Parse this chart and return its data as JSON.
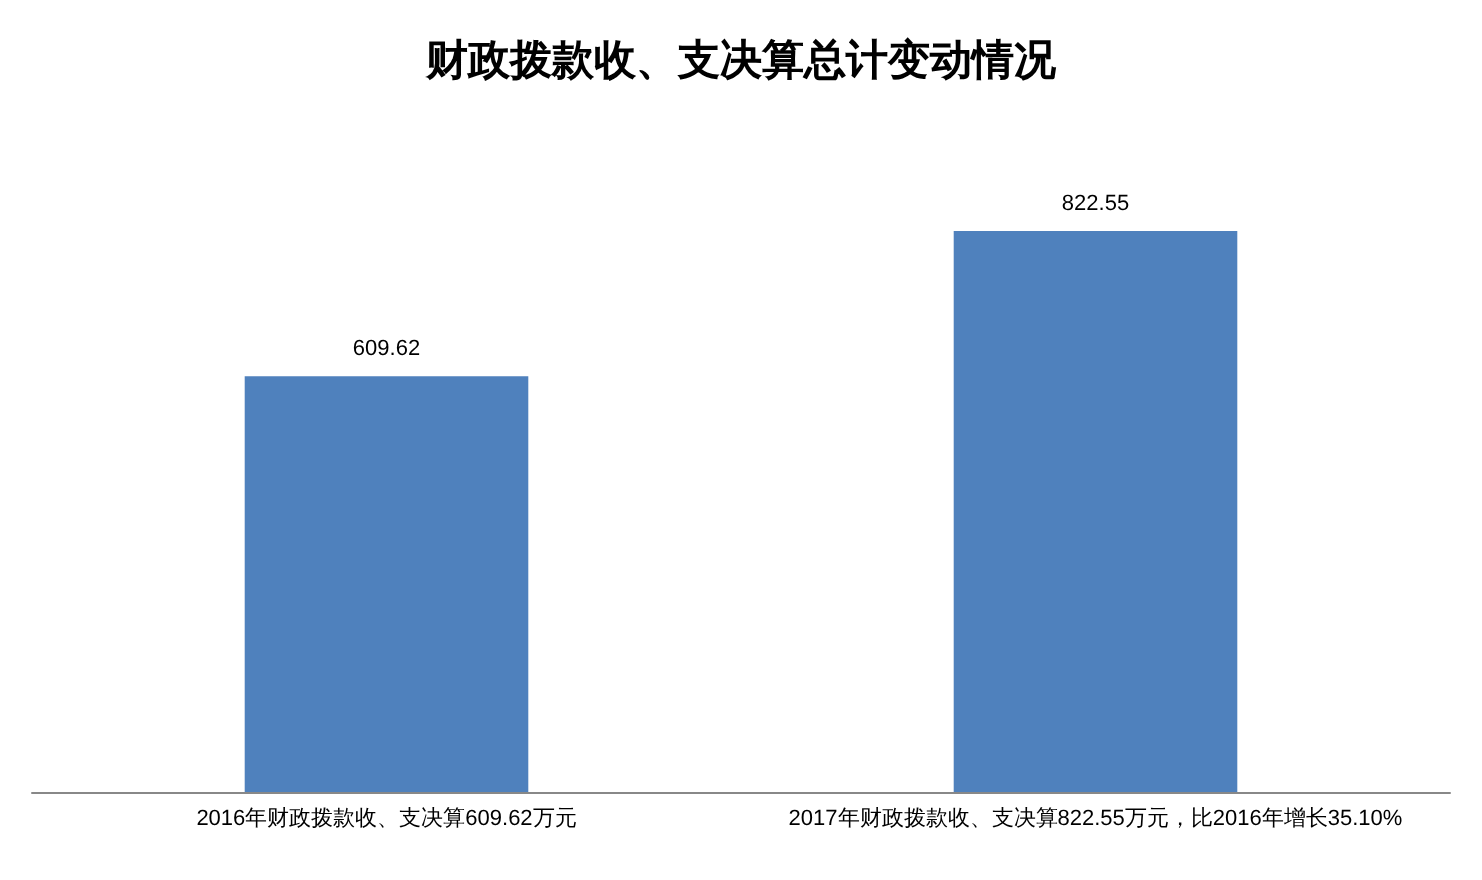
{
  "chart_data": {
    "type": "bar",
    "title": "财政拨款收、支决算总计变动情况",
    "categories": [
      "2016年财政拨款收、支决算609.62万元",
      "2017年财政拨款收、支决算822.55万元，比2016年增长35.10%"
    ],
    "values": [
      609.62,
      822.55
    ],
    "color": "#4f81bd",
    "data_labels": true
  }
}
